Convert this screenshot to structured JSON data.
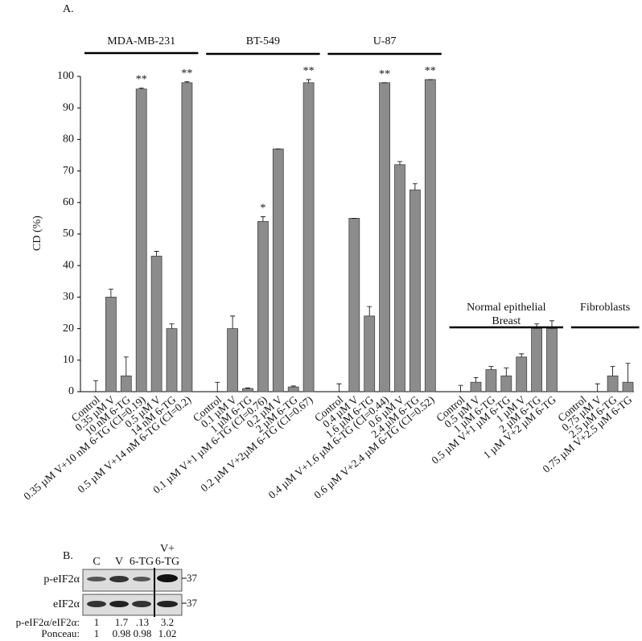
{
  "chart_data": {
    "type": "bar",
    "panel_label": "A.",
    "ylabel": "CD (%)",
    "ylim": [
      0,
      100
    ],
    "yticks": [
      0,
      10,
      20,
      30,
      40,
      50,
      60,
      70,
      80,
      90,
      100
    ],
    "color": "#8c8c8c",
    "groups": [
      {
        "label": [
          "MDA-MB-231"
        ],
        "categories": [
          "Control",
          "0.35 µM V",
          "10 nM 6-TG",
          "0.35 µM V+10 nM 6-TG (CI=0.19)",
          "0.5 µM V",
          "14 nM 6-TG",
          "0.5 µM V+14 nM 6-TG (CI=0.2)"
        ],
        "values": [
          0,
          30,
          5,
          96,
          43,
          20,
          98
        ],
        "errors": [
          3.5,
          2.5,
          6,
          0.3,
          1.5,
          1.5,
          0.3
        ],
        "significance": [
          null,
          null,
          null,
          "**",
          null,
          null,
          "**"
        ]
      },
      {
        "label": [
          "BT-549"
        ],
        "categories": [
          "Control",
          "0.1 µM V",
          "1 µM 6-TG",
          "0.1 µM V+1 µM 6-TG (CI=0.76)",
          "0.2 µM V",
          "2 µM 6-TG",
          "0.2 µM V+2µM 6-TG (CI=0.67)"
        ],
        "values": [
          0,
          20,
          1,
          54,
          77,
          1.5,
          98
        ],
        "errors": [
          3,
          4,
          0.2,
          1.5,
          0,
          0.3,
          1
        ],
        "significance": [
          null,
          null,
          null,
          "*",
          null,
          null,
          "**"
        ]
      },
      {
        "label": [
          "U-87"
        ],
        "categories": [
          "Control",
          "0.4 µM V",
          "1.6 µM 6-TG",
          "0.4 µM V+1.6 µM 6-TG (CI=0.44)",
          "0.6 µM V",
          "2.4 µM 6-TG",
          "0.6 µM V+2.4 µM 6-TG (CI=0.52)"
        ],
        "values": [
          0,
          55,
          24,
          98,
          72,
          64,
          99
        ],
        "errors": [
          2.5,
          0,
          3,
          0,
          1,
          2,
          0
        ],
        "significance": [
          null,
          null,
          null,
          "**",
          null,
          null,
          "**"
        ]
      },
      {
        "label": [
          "Normal epithelial",
          "Breast"
        ],
        "categories": [
          "Control",
          "0.5 µM V",
          "1 µM 6-TG",
          "0.5 µM V+1 µM 6-TG",
          "1 µM V",
          "2 µM 6-TG",
          "1 µM V+2 µM 6-TG"
        ],
        "values": [
          0,
          3,
          7,
          5,
          11,
          20,
          20
        ],
        "errors": [
          2,
          1.5,
          1,
          2.5,
          1,
          1.5,
          2.5
        ],
        "significance": [
          null,
          null,
          null,
          null,
          null,
          null,
          null
        ]
      },
      {
        "label": [
          "Fibroblasts"
        ],
        "categories": [
          "Control",
          "0.75 µM V",
          "2.5 µM 6-TG",
          "0.75 µM V+2.5 µM 6-TG"
        ],
        "values": [
          0,
          0,
          5,
          3
        ],
        "errors": [
          0,
          2.5,
          3,
          6
        ],
        "significance": [
          null,
          null,
          null,
          null
        ]
      }
    ]
  },
  "blot": {
    "panel_label": "B.",
    "columns": [
      [
        "C"
      ],
      [
        "V"
      ],
      [
        "6-TG"
      ],
      [
        "V+",
        "6-TG"
      ]
    ],
    "rows": [
      {
        "label": "p-eIF2α",
        "marker": "37"
      },
      {
        "label": "eIF2α",
        "marker": "37"
      }
    ],
    "quantification": [
      {
        "label": "p-eIF2α/eIF2α:",
        "values": [
          "1",
          "1.7",
          ".13",
          "3.2"
        ]
      },
      {
        "label": "Ponceau:",
        "values": [
          "1",
          "0.98",
          "0.98",
          "1.02"
        ]
      }
    ]
  }
}
